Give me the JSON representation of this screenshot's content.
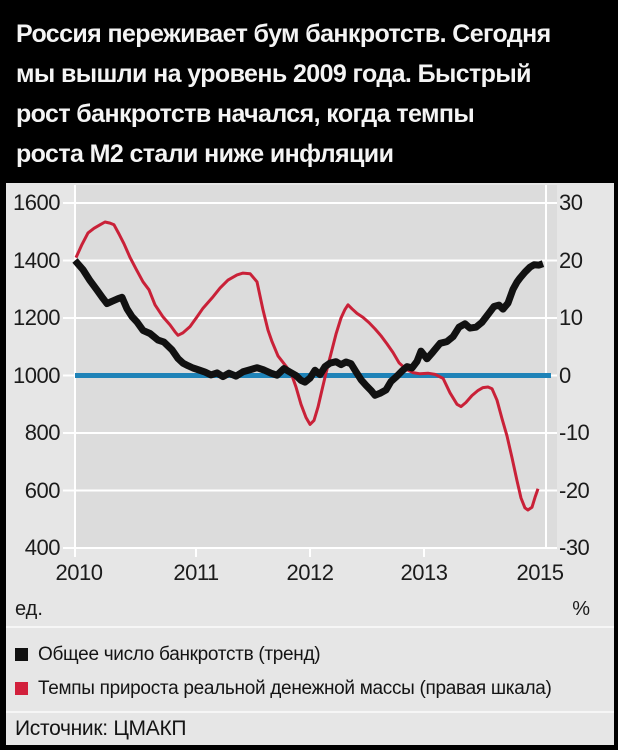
{
  "title": {
    "lines": [
      "Россия переживает бум банкротств. Сегодня",
      "мы вышли на уровень 2009 года. Быстрый",
      "рост банкротств начался, когда темпы",
      "роста М2 стали ниже инфляции"
    ]
  },
  "chart_data": {
    "type": "line",
    "background": "#dcdcdc",
    "grid": "horizontal white lines on gray, vertical gridline at 2015",
    "x_axis": {
      "ticks": [
        {
          "label": "2010",
          "pos": 0
        },
        {
          "label": "2011",
          "pos": 1
        },
        {
          "label": "2012",
          "pos": 2
        },
        {
          "label": "2013",
          "pos": 3
        },
        {
          "label": "2015",
          "pos": 4
        }
      ]
    },
    "y_axis_left": {
      "unit": "ед.",
      "range": [
        400,
        1600
      ],
      "ticks": [
        "1600",
        "1400",
        "1200",
        "1000",
        "800",
        "600",
        "400"
      ]
    },
    "y_axis_right": {
      "unit": "%",
      "range": [
        -30,
        30
      ],
      "ticks": [
        "30",
        "20",
        "10",
        "0",
        "-10",
        "-20",
        "-30"
      ]
    },
    "reference_line": {
      "value_left": 1000,
      "value_right": 0,
      "color": "#1f83b8"
    },
    "series": [
      {
        "name": "Общее число банкротств (тренд)",
        "axis": "left",
        "color": "#111111",
        "width": 7,
        "points": [
          [
            -0.035,
            1400
          ],
          [
            0.035,
            1368
          ],
          [
            0.095,
            1330
          ],
          [
            0.156,
            1297
          ],
          [
            0.208,
            1268
          ],
          [
            0.242,
            1250
          ],
          [
            0.286,
            1258
          ],
          [
            0.338,
            1267
          ],
          [
            0.372,
            1272
          ],
          [
            0.416,
            1232
          ],
          [
            0.459,
            1205
          ],
          [
            0.502,
            1186
          ],
          [
            0.554,
            1157
          ],
          [
            0.615,
            1146
          ],
          [
            0.684,
            1123
          ],
          [
            0.736,
            1116
          ],
          [
            0.805,
            1089
          ],
          [
            0.857,
            1059
          ],
          [
            0.9,
            1043
          ],
          [
            0.944,
            1034
          ],
          [
            0.987,
            1026
          ],
          [
            1.039,
            1019
          ],
          [
            1.091,
            1012
          ],
          [
            1.143,
            1002
          ],
          [
            1.195,
            1009
          ],
          [
            1.247,
            996
          ],
          [
            1.299,
            1008
          ],
          [
            1.359,
            998
          ],
          [
            1.42,
            1013
          ],
          [
            1.481,
            1020
          ],
          [
            1.541,
            1027
          ],
          [
            1.602,
            1019
          ],
          [
            1.662,
            1008
          ],
          [
            1.714,
            1001
          ],
          [
            1.775,
            1024
          ],
          [
            1.827,
            1012
          ],
          [
            1.879,
            1000
          ],
          [
            1.922,
            983
          ],
          [
            1.957,
            977
          ],
          [
            2.0,
            991
          ],
          [
            2.043,
            1018
          ],
          [
            2.087,
            1003
          ],
          [
            2.13,
            1031
          ],
          [
            2.173,
            1043
          ],
          [
            2.225,
            1048
          ],
          [
            2.268,
            1038
          ],
          [
            2.312,
            1047
          ],
          [
            2.355,
            1041
          ],
          [
            2.398,
            1013
          ],
          [
            2.442,
            985
          ],
          [
            2.485,
            966
          ],
          [
            2.528,
            948
          ],
          [
            2.563,
            931
          ],
          [
            2.606,
            938
          ],
          [
            2.658,
            950
          ],
          [
            2.701,
            979
          ],
          [
            2.753,
            998
          ],
          [
            2.797,
            1016
          ],
          [
            2.84,
            1031
          ],
          [
            2.883,
            1026
          ],
          [
            2.926,
            1049
          ],
          [
            2.961,
            1085
          ],
          [
            3.013,
            1058
          ],
          [
            3.065,
            1082
          ],
          [
            3.126,
            1112
          ],
          [
            3.186,
            1118
          ],
          [
            3.238,
            1135
          ],
          [
            3.29,
            1168
          ],
          [
            3.342,
            1180
          ],
          [
            3.385,
            1165
          ],
          [
            3.437,
            1168
          ],
          [
            3.489,
            1185
          ],
          [
            3.55,
            1217
          ],
          [
            3.593,
            1240
          ],
          [
            3.636,
            1245
          ],
          [
            3.671,
            1231
          ],
          [
            3.714,
            1252
          ],
          [
            3.758,
            1300
          ],
          [
            3.792,
            1325
          ],
          [
            3.818,
            1339
          ],
          [
            3.862,
            1360
          ],
          [
            3.905,
            1377
          ],
          [
            3.939,
            1385
          ],
          [
            3.983,
            1384
          ],
          [
            4.017,
            1389
          ]
        ]
      },
      {
        "name": "Темпы прироста реальной денежной массы (правая шкала)",
        "axis": "right",
        "color": "#c92138",
        "width": 3,
        "points": [
          [
            -0.026,
            20.5
          ],
          [
            0.026,
            22.8
          ],
          [
            0.078,
            24.8
          ],
          [
            0.13,
            25.6
          ],
          [
            0.182,
            26.2
          ],
          [
            0.225,
            26.7
          ],
          [
            0.268,
            26.5
          ],
          [
            0.303,
            26.2
          ],
          [
            0.346,
            24.6
          ],
          [
            0.39,
            22.9
          ],
          [
            0.442,
            20.5
          ],
          [
            0.494,
            18.5
          ],
          [
            0.554,
            16.3
          ],
          [
            0.606,
            14.9
          ],
          [
            0.658,
            12.3
          ],
          [
            0.727,
            10.2
          ],
          [
            0.788,
            8.8
          ],
          [
            0.831,
            7.6
          ],
          [
            0.857,
            7.0
          ],
          [
            0.9,
            7.4
          ],
          [
            0.961,
            8.5
          ],
          [
            1.022,
            10.2
          ],
          [
            1.074,
            11.7
          ],
          [
            1.152,
            13.5
          ],
          [
            1.221,
            15.2
          ],
          [
            1.29,
            16.6
          ],
          [
            1.368,
            17.5
          ],
          [
            1.42,
            17.8
          ],
          [
            1.481,
            17.7
          ],
          [
            1.541,
            16.3
          ],
          [
            1.593,
            11.4
          ],
          [
            1.636,
            7.9
          ],
          [
            1.671,
            5.9
          ],
          [
            1.723,
            3.4
          ],
          [
            1.784,
            1.8
          ],
          [
            1.835,
            0.5
          ],
          [
            1.879,
            -2.0
          ],
          [
            1.922,
            -5.0
          ],
          [
            1.965,
            -7.3
          ],
          [
            2.0,
            -8.5
          ],
          [
            2.035,
            -7.8
          ],
          [
            2.069,
            -5.5
          ],
          [
            2.104,
            -2.5
          ],
          [
            2.139,
            0.5
          ],
          [
            2.182,
            3.8
          ],
          [
            2.225,
            7.2
          ],
          [
            2.268,
            10.0
          ],
          [
            2.303,
            11.5
          ],
          [
            2.329,
            12.3
          ],
          [
            2.364,
            11.6
          ],
          [
            2.407,
            10.8
          ],
          [
            2.459,
            10.1
          ],
          [
            2.511,
            9.2
          ],
          [
            2.563,
            8.1
          ],
          [
            2.615,
            6.9
          ],
          [
            2.667,
            5.5
          ],
          [
            2.719,
            4.0
          ],
          [
            2.771,
            2.2
          ],
          [
            2.831,
            1.1
          ],
          [
            2.892,
            0.5
          ],
          [
            2.952,
            0.3
          ],
          [
            3.022,
            0.4
          ],
          [
            3.082,
            0.2
          ],
          [
            3.152,
            -0.5
          ],
          [
            3.212,
            -3.0
          ],
          [
            3.273,
            -5.0
          ],
          [
            3.307,
            -5.4
          ],
          [
            3.35,
            -4.7
          ],
          [
            3.402,
            -3.5
          ],
          [
            3.455,
            -2.6
          ],
          [
            3.498,
            -2.1
          ],
          [
            3.541,
            -2.0
          ],
          [
            3.576,
            -2.3
          ],
          [
            3.619,
            -4.3
          ],
          [
            3.662,
            -7.5
          ],
          [
            3.706,
            -10.5
          ],
          [
            3.749,
            -14.3
          ],
          [
            3.792,
            -18.3
          ],
          [
            3.827,
            -21.3
          ],
          [
            3.861,
            -23.0
          ],
          [
            3.887,
            -23.4
          ],
          [
            3.922,
            -22.9
          ],
          [
            3.948,
            -21.2
          ],
          [
            3.974,
            -19.7
          ]
        ]
      }
    ]
  },
  "legend": {
    "items": [
      {
        "label": "Общее число банкротств (тренд)",
        "color": "#111111"
      },
      {
        "label": "Темпы прироста реальной денежной массы (правая шкала)",
        "color": "#d2203c"
      }
    ]
  },
  "source": {
    "label": "Источник: ЦМАКП"
  }
}
